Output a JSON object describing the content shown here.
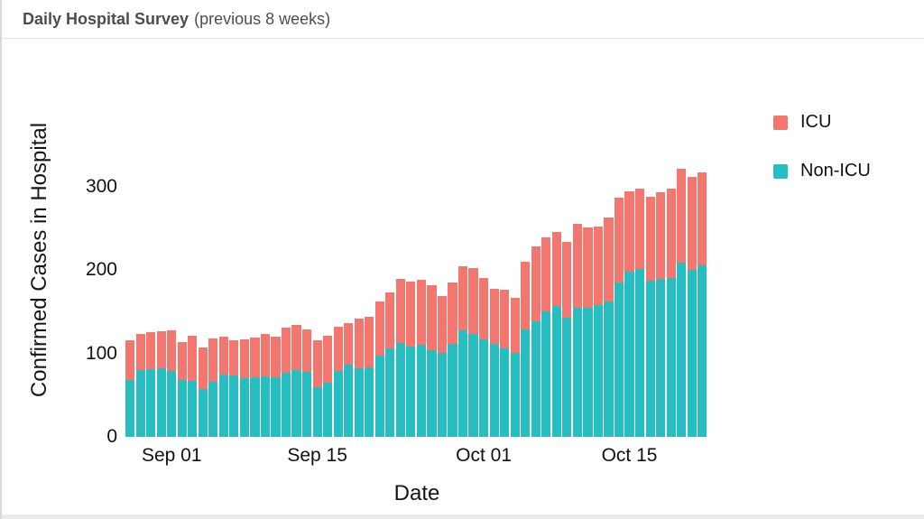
{
  "header": {
    "title": "Daily Hospital Survey",
    "subtitle": "(previous 8 weeks)"
  },
  "chart_data": {
    "type": "bar",
    "stacked": true,
    "title": "Daily Hospital Survey (previous 8 weeks)",
    "xlabel": "Date",
    "ylabel": "Confirmed Cases in Hospital",
    "ylim": [
      0,
      360
    ],
    "grid": false,
    "legend_position": "right",
    "yticks": [
      0,
      100,
      200,
      300
    ],
    "xticks": [
      {
        "label": "Sep 01",
        "category_index": 4
      },
      {
        "label": "Sep 15",
        "category_index": 18
      },
      {
        "label": "Oct 01",
        "category_index": 34
      },
      {
        "label": "Oct 15",
        "category_index": 48
      }
    ],
    "categories": [
      "Aug 28",
      "Aug 29",
      "Aug 30",
      "Aug 31",
      "Sep 01",
      "Sep 02",
      "Sep 03",
      "Sep 04",
      "Sep 05",
      "Sep 06",
      "Sep 07",
      "Sep 08",
      "Sep 09",
      "Sep 10",
      "Sep 11",
      "Sep 12",
      "Sep 13",
      "Sep 14",
      "Sep 15",
      "Sep 16",
      "Sep 17",
      "Sep 18",
      "Sep 19",
      "Sep 20",
      "Sep 21",
      "Sep 22",
      "Sep 23",
      "Sep 24",
      "Sep 25",
      "Sep 26",
      "Sep 27",
      "Sep 28",
      "Sep 29",
      "Sep 30",
      "Oct 01",
      "Oct 02",
      "Oct 03",
      "Oct 04",
      "Oct 05",
      "Oct 06",
      "Oct 07",
      "Oct 08",
      "Oct 09",
      "Oct 10",
      "Oct 11",
      "Oct 12",
      "Oct 13",
      "Oct 14",
      "Oct 15",
      "Oct 16",
      "Oct 17",
      "Oct 18",
      "Oct 19",
      "Oct 20",
      "Oct 21",
      "Oct 22"
    ],
    "series": [
      {
        "name": "Non-ICU",
        "color": "#26BEC1",
        "values": [
          68,
          80,
          81,
          82,
          79,
          68,
          67,
          57,
          66,
          75,
          74,
          70,
          71,
          73,
          71,
          77,
          80,
          78,
          60,
          65,
          79,
          87,
          82,
          83,
          97,
          106,
          113,
          108,
          110,
          104,
          101,
          112,
          128,
          124,
          117,
          112,
          106,
          101,
          129,
          139,
          151,
          157,
          143,
          155,
          155,
          158,
          163,
          185,
          198,
          201,
          187,
          189,
          191,
          209,
          200,
          206
        ]
      },
      {
        "name": "ICU",
        "color": "#F4776F",
        "values": [
          48,
          44,
          45,
          45,
          49,
          46,
          54,
          50,
          52,
          45,
          42,
          47,
          48,
          50,
          49,
          54,
          54,
          51,
          56,
          56,
          53,
          50,
          60,
          61,
          66,
          67,
          76,
          78,
          78,
          78,
          68,
          73,
          77,
          79,
          74,
          66,
          71,
          66,
          81,
          89,
          88,
          89,
          91,
          101,
          96,
          94,
          100,
          102,
          97,
          97,
          101,
          105,
          107,
          113,
          112,
          111
        ]
      }
    ],
    "legend": [
      "ICU",
      "Non-ICU"
    ]
  }
}
